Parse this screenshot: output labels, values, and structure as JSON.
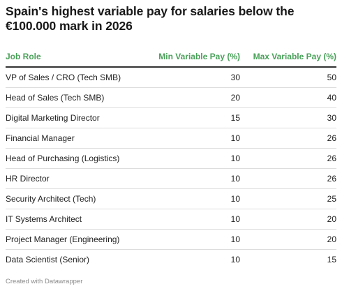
{
  "chart_data": {
    "type": "table",
    "title": "Spain's highest variable pay for salaries below the €100.000 mark in 2026",
    "columns": [
      "Job Role",
      "Min Variable Pay (%)",
      "Max Variable Pay (%)"
    ],
    "rows": [
      {
        "role": "VP of Sales / CRO (Tech SMB)",
        "min": 30,
        "max": 50
      },
      {
        "role": "Head of Sales (Tech SMB)",
        "min": 20,
        "max": 40
      },
      {
        "role": "Digital Marketing Director",
        "min": 15,
        "max": 30
      },
      {
        "role": "Financial Manager",
        "min": 10,
        "max": 26
      },
      {
        "role": "Head of Purchasing (Logistics)",
        "min": 10,
        "max": 26
      },
      {
        "role": "HR Director",
        "min": 10,
        "max": 26
      },
      {
        "role": "Security Architect (Tech)",
        "min": 10,
        "max": 25
      },
      {
        "role": "IT Systems Architect",
        "min": 10,
        "max": 20
      },
      {
        "role": "Project Manager (Engineering)",
        "min": 10,
        "max": 20
      },
      {
        "role": "Data Scientist (Senior)",
        "min": 10,
        "max": 15
      }
    ],
    "header_color": "#4aa15a"
  },
  "footer": {
    "credit": "Created with Datawrapper"
  }
}
